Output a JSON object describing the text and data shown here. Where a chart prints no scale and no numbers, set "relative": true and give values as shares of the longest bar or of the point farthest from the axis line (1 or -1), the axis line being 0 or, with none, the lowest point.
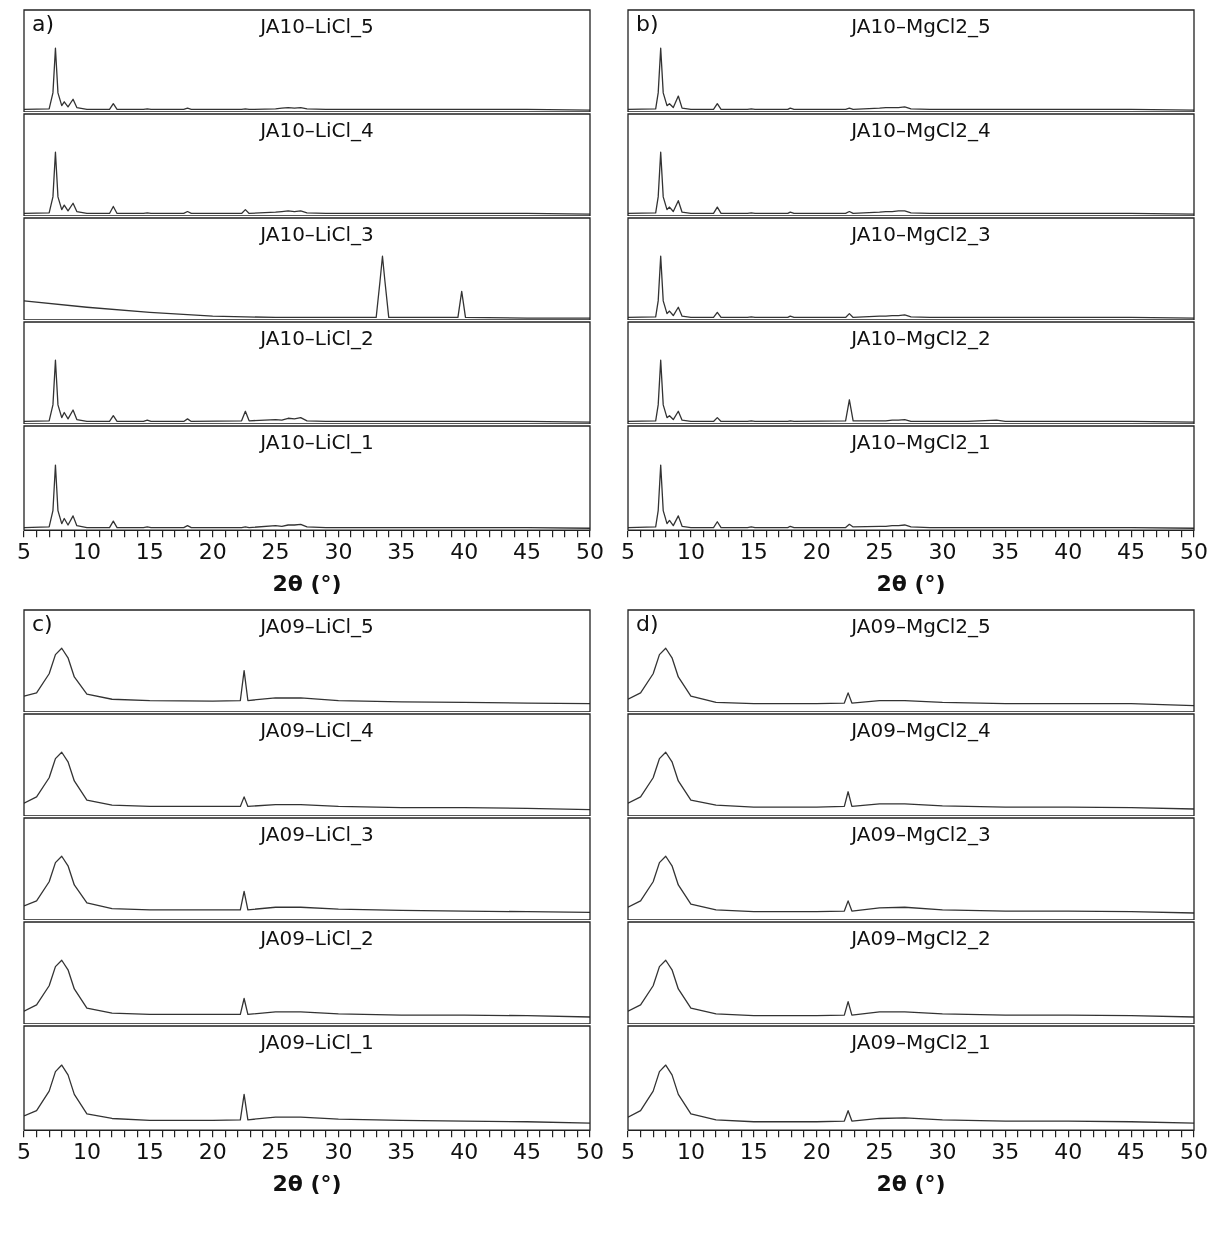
{
  "chart_data": [
    {
      "type": "line",
      "title": "JA10–LiCl_5",
      "annotations": [
        "a)"
      ],
      "relative": true,
      "color": "#333333",
      "xlim": [
        5,
        50
      ],
      "tick_labels": false,
      "grid": false,
      "legend": false,
      "x": [
        5,
        7,
        7.3,
        7.5,
        7.7,
        8,
        8.2,
        8.5,
        8.9,
        9.2,
        10,
        11.8,
        12.1,
        12.4,
        14.5,
        14.8,
        15.1,
        17.7,
        18,
        18.3,
        22.3,
        22.6,
        22.9,
        25,
        25.5,
        26,
        26.5,
        27,
        27.5,
        29,
        32,
        35,
        40,
        45,
        50
      ],
      "values": [
        0.04,
        0.05,
        0.3,
        1,
        0.3,
        0.1,
        0.16,
        0.08,
        0.2,
        0.07,
        0.04,
        0.04,
        0.13,
        0.04,
        0.04,
        0.05,
        0.04,
        0.04,
        0.06,
        0.04,
        0.04,
        0.05,
        0.04,
        0.05,
        0.06,
        0.07,
        0.06,
        0.07,
        0.05,
        0.04,
        0.04,
        0.04,
        0.04,
        0.04,
        0.03
      ]
    },
    {
      "type": "line",
      "title": "JA10–LiCl_4",
      "relative": true,
      "color": "#333333",
      "xlim": [
        5,
        50
      ],
      "tick_labels": false,
      "grid": false,
      "legend": false,
      "x": [
        5,
        7,
        7.3,
        7.5,
        7.7,
        8,
        8.2,
        8.5,
        8.9,
        9.2,
        10,
        11.8,
        12.1,
        12.4,
        14.5,
        14.8,
        15.1,
        17.7,
        18,
        18.3,
        22.3,
        22.6,
        22.9,
        25,
        25.5,
        26,
        26.5,
        27,
        27.5,
        29,
        32,
        35,
        40,
        45,
        50
      ],
      "values": [
        0.04,
        0.05,
        0.3,
        1,
        0.3,
        0.1,
        0.17,
        0.08,
        0.2,
        0.07,
        0.04,
        0.04,
        0.15,
        0.04,
        0.04,
        0.05,
        0.04,
        0.04,
        0.07,
        0.04,
        0.04,
        0.1,
        0.04,
        0.06,
        0.07,
        0.08,
        0.07,
        0.08,
        0.05,
        0.04,
        0.04,
        0.04,
        0.04,
        0.04,
        0.03
      ]
    },
    {
      "type": "line",
      "title": "JA10–LiCl_3",
      "relative": true,
      "color": "#333333",
      "xlim": [
        5,
        50
      ],
      "tick_labels": false,
      "grid": false,
      "legend": false,
      "x": [
        5,
        10,
        15,
        20,
        25,
        30,
        33,
        33.3,
        33.5,
        33.7,
        34,
        39.5,
        39.8,
        40.1,
        45,
        50
      ],
      "values": [
        0.3,
        0.2,
        0.12,
        0.06,
        0.04,
        0.04,
        0.04,
        0.6,
        1,
        0.6,
        0.04,
        0.04,
        0.45,
        0.04,
        0.03,
        0.03
      ]
    },
    {
      "type": "line",
      "title": "JA10–LiCl_2",
      "relative": true,
      "color": "#333333",
      "xlim": [
        5,
        50
      ],
      "tick_labels": false,
      "grid": false,
      "legend": false,
      "x": [
        5,
        7,
        7.3,
        7.5,
        7.7,
        8,
        8.2,
        8.5,
        8.9,
        9.2,
        10,
        11.8,
        12.1,
        12.4,
        14.5,
        14.8,
        15.1,
        17.7,
        18,
        18.3,
        22.3,
        22.6,
        22.9,
        25,
        25.5,
        26,
        26.5,
        27,
        27.5,
        29,
        32,
        35,
        40,
        45,
        50
      ],
      "values": [
        0.04,
        0.05,
        0.3,
        1,
        0.3,
        0.1,
        0.18,
        0.08,
        0.22,
        0.07,
        0.04,
        0.04,
        0.13,
        0.04,
        0.04,
        0.06,
        0.04,
        0.04,
        0.08,
        0.04,
        0.05,
        0.2,
        0.05,
        0.07,
        0.06,
        0.09,
        0.08,
        0.1,
        0.05,
        0.04,
        0.04,
        0.04,
        0.04,
        0.04,
        0.03
      ]
    },
    {
      "type": "line",
      "title": "JA10–LiCl_1",
      "relative": true,
      "color": "#333333",
      "xlim": [
        5,
        50
      ],
      "tick_labels": "x",
      "grid": false,
      "legend": false,
      "xlabel": "2θ (°)",
      "xticks": [
        5,
        {
          "value": 6,
          "label": null
        },
        {
          "value": 7,
          "label": null
        },
        {
          "value": 8,
          "label": null
        },
        {
          "value": 9,
          "label": null
        },
        10,
        {
          "value": 11,
          "label": null
        },
        {
          "value": 12,
          "label": null
        },
        {
          "value": 13,
          "label": null
        },
        {
          "value": 14,
          "label": null
        },
        15,
        {
          "value": 16,
          "label": null
        },
        {
          "value": 17,
          "label": null
        },
        {
          "value": 18,
          "label": null
        },
        {
          "value": 19,
          "label": null
        },
        20,
        {
          "value": 21,
          "label": null
        },
        {
          "value": 22,
          "label": null
        },
        {
          "value": 23,
          "label": null
        },
        {
          "value": 24,
          "label": null
        },
        25,
        {
          "value": 26,
          "label": null
        },
        {
          "value": 27,
          "label": null
        },
        {
          "value": 28,
          "label": null
        },
        {
          "value": 29,
          "label": null
        },
        30,
        {
          "value": 31,
          "label": null
        },
        {
          "value": 32,
          "label": null
        },
        {
          "value": 33,
          "label": null
        },
        {
          "value": 34,
          "label": null
        },
        35,
        {
          "value": 36,
          "label": null
        },
        {
          "value": 37,
          "label": null
        },
        {
          "value": 38,
          "label": null
        },
        {
          "value": 39,
          "label": null
        },
        40,
        {
          "value": 41,
          "label": null
        },
        {
          "value": 42,
          "label": null
        },
        {
          "value": 43,
          "label": null
        },
        {
          "value": 44,
          "label": null
        },
        45,
        {
          "value": 46,
          "label": null
        },
        {
          "value": 47,
          "label": null
        },
        {
          "value": 48,
          "label": null
        },
        {
          "value": 49,
          "label": null
        },
        50
      ],
      "x": [
        5,
        7,
        7.3,
        7.5,
        7.7,
        8,
        8.2,
        8.5,
        8.9,
        9.2,
        10,
        11.8,
        12.1,
        12.4,
        14.5,
        14.8,
        15.1,
        17.7,
        18,
        18.3,
        22.3,
        22.6,
        22.9,
        25,
        25.5,
        26,
        26.5,
        27,
        27.5,
        29,
        32,
        35,
        40,
        45,
        50
      ],
      "values": [
        0.04,
        0.05,
        0.3,
        1,
        0.3,
        0.1,
        0.18,
        0.08,
        0.22,
        0.07,
        0.04,
        0.04,
        0.14,
        0.04,
        0.04,
        0.05,
        0.04,
        0.04,
        0.07,
        0.04,
        0.04,
        0.05,
        0.04,
        0.07,
        0.06,
        0.08,
        0.08,
        0.09,
        0.05,
        0.04,
        0.04,
        0.04,
        0.04,
        0.04,
        0.03
      ]
    },
    {
      "type": "line",
      "title": "JA10–MgCl2_5",
      "annotations": [
        "b)"
      ],
      "relative": true,
      "color": "#333333",
      "xlim": [
        5,
        50
      ],
      "tick_labels": false,
      "grid": false,
      "legend": false,
      "x": [
        5,
        7.2,
        7.4,
        7.6,
        7.8,
        8.1,
        8.3,
        8.6,
        9,
        9.3,
        10,
        11.8,
        12.1,
        12.4,
        14.5,
        14.8,
        15.1,
        17.7,
        17.9,
        18.2,
        22.3,
        22.6,
        22.9,
        25,
        25.5,
        26,
        26.5,
        27,
        27.5,
        29,
        32,
        35,
        40,
        45,
        50
      ],
      "values": [
        0.04,
        0.05,
        0.3,
        1,
        0.3,
        0.1,
        0.13,
        0.07,
        0.25,
        0.06,
        0.04,
        0.04,
        0.13,
        0.04,
        0.04,
        0.05,
        0.04,
        0.04,
        0.06,
        0.04,
        0.04,
        0.06,
        0.04,
        0.06,
        0.07,
        0.07,
        0.07,
        0.08,
        0.05,
        0.04,
        0.04,
        0.04,
        0.04,
        0.04,
        0.03
      ]
    },
    {
      "type": "line",
      "title": "JA10–MgCl2_4",
      "relative": true,
      "color": "#333333",
      "xlim": [
        5,
        50
      ],
      "tick_labels": false,
      "grid": false,
      "legend": false,
      "x": [
        5,
        7.2,
        7.4,
        7.6,
        7.8,
        8.1,
        8.3,
        8.6,
        9,
        9.3,
        10,
        11.8,
        12.1,
        12.4,
        14.5,
        14.8,
        15.1,
        17.7,
        17.9,
        18.2,
        22.3,
        22.6,
        22.9,
        25,
        25.5,
        26,
        26.5,
        27,
        27.5,
        29,
        32,
        35,
        40,
        45,
        50
      ],
      "values": [
        0.04,
        0.05,
        0.3,
        1,
        0.3,
        0.1,
        0.14,
        0.07,
        0.24,
        0.06,
        0.04,
        0.04,
        0.14,
        0.04,
        0.04,
        0.05,
        0.04,
        0.04,
        0.06,
        0.04,
        0.04,
        0.07,
        0.04,
        0.06,
        0.07,
        0.07,
        0.08,
        0.08,
        0.05,
        0.04,
        0.04,
        0.04,
        0.04,
        0.04,
        0.03
      ]
    },
    {
      "type": "line",
      "title": "JA10–MgCl2_3",
      "relative": true,
      "color": "#333333",
      "xlim": [
        5,
        50
      ],
      "tick_labels": false,
      "grid": false,
      "legend": false,
      "x": [
        5,
        7.2,
        7.4,
        7.6,
        7.8,
        8.1,
        8.3,
        8.6,
        9,
        9.3,
        10,
        11.8,
        12.1,
        12.4,
        14.5,
        14.8,
        15.1,
        17.7,
        17.9,
        18.2,
        22.3,
        22.6,
        22.9,
        25,
        25.5,
        26,
        26.5,
        27,
        27.5,
        29,
        32,
        35,
        40,
        45,
        50
      ],
      "values": [
        0.04,
        0.05,
        0.3,
        1,
        0.3,
        0.1,
        0.14,
        0.07,
        0.2,
        0.06,
        0.04,
        0.04,
        0.12,
        0.04,
        0.04,
        0.05,
        0.04,
        0.04,
        0.06,
        0.04,
        0.04,
        0.1,
        0.04,
        0.06,
        0.06,
        0.07,
        0.07,
        0.08,
        0.05,
        0.04,
        0.04,
        0.04,
        0.04,
        0.04,
        0.03
      ]
    },
    {
      "type": "line",
      "title": "JA10–MgCl2_2",
      "relative": true,
      "color": "#333333",
      "xlim": [
        5,
        50
      ],
      "tick_labels": false,
      "grid": false,
      "legend": false,
      "x": [
        5,
        7.2,
        7.4,
        7.6,
        7.8,
        8.1,
        8.3,
        8.6,
        9,
        9.3,
        10,
        11.8,
        12.1,
        12.4,
        14.5,
        14.8,
        15.1,
        17.7,
        17.9,
        18.2,
        22.3,
        22.6,
        22.9,
        25,
        25.5,
        26,
        26.5,
        27,
        27.5,
        29,
        32,
        34.3,
        35,
        40,
        45,
        50
      ],
      "values": [
        0.04,
        0.05,
        0.3,
        1,
        0.3,
        0.1,
        0.13,
        0.07,
        0.2,
        0.06,
        0.04,
        0.04,
        0.1,
        0.04,
        0.04,
        0.05,
        0.04,
        0.04,
        0.05,
        0.04,
        0.05,
        0.38,
        0.05,
        0.05,
        0.05,
        0.06,
        0.06,
        0.07,
        0.04,
        0.04,
        0.04,
        0.06,
        0.04,
        0.04,
        0.04,
        0.03
      ]
    },
    {
      "type": "line",
      "title": "JA10–MgCl2_1",
      "relative": true,
      "color": "#333333",
      "xlim": [
        5,
        50
      ],
      "tick_labels": "x",
      "grid": false,
      "legend": false,
      "xlabel": "2θ (°)",
      "xticks": [
        5,
        {
          "value": 6,
          "label": null
        },
        {
          "value": 7,
          "label": null
        },
        {
          "value": 8,
          "label": null
        },
        {
          "value": 9,
          "label": null
        },
        10,
        {
          "value": 11,
          "label": null
        },
        {
          "value": 12,
          "label": null
        },
        {
          "value": 13,
          "label": null
        },
        {
          "value": 14,
          "label": null
        },
        15,
        {
          "value": 16,
          "label": null
        },
        {
          "value": 17,
          "label": null
        },
        {
          "value": 18,
          "label": null
        },
        {
          "value": 19,
          "label": null
        },
        20,
        {
          "value": 21,
          "label": null
        },
        {
          "value": 22,
          "label": null
        },
        {
          "value": 23,
          "label": null
        },
        {
          "value": 24,
          "label": null
        },
        25,
        {
          "value": 26,
          "label": null
        },
        {
          "value": 27,
          "label": null
        },
        {
          "value": 28,
          "label": null
        },
        {
          "value": 29,
          "label": null
        },
        30,
        {
          "value": 31,
          "label": null
        },
        {
          "value": 32,
          "label": null
        },
        {
          "value": 33,
          "label": null
        },
        {
          "value": 34,
          "label": null
        },
        35,
        {
          "value": 36,
          "label": null
        },
        {
          "value": 37,
          "label": null
        },
        {
          "value": 38,
          "label": null
        },
        {
          "value": 39,
          "label": null
        },
        40,
        {
          "value": 41,
          "label": null
        },
        {
          "value": 42,
          "label": null
        },
        {
          "value": 43,
          "label": null
        },
        {
          "value": 44,
          "label": null
        },
        45,
        {
          "value": 46,
          "label": null
        },
        {
          "value": 47,
          "label": null
        },
        {
          "value": 48,
          "label": null
        },
        {
          "value": 49,
          "label": null
        },
        50
      ],
      "x": [
        5,
        7.2,
        7.4,
        7.6,
        7.8,
        8.1,
        8.3,
        8.6,
        9,
        9.3,
        10,
        11.8,
        12.1,
        12.4,
        14.5,
        14.8,
        15.1,
        17.7,
        17.9,
        18.2,
        22.3,
        22.6,
        22.9,
        25,
        25.5,
        26,
        26.5,
        27,
        27.5,
        29,
        32,
        35,
        40,
        45,
        50
      ],
      "values": [
        0.04,
        0.05,
        0.3,
        1,
        0.3,
        0.1,
        0.15,
        0.07,
        0.22,
        0.06,
        0.04,
        0.04,
        0.13,
        0.04,
        0.04,
        0.05,
        0.04,
        0.04,
        0.06,
        0.04,
        0.04,
        0.09,
        0.05,
        0.06,
        0.06,
        0.07,
        0.07,
        0.08,
        0.05,
        0.04,
        0.04,
        0.04,
        0.04,
        0.04,
        0.03
      ]
    },
    {
      "type": "line",
      "title": "JA09–LiCl_5",
      "annotations": [
        "c)"
      ],
      "relative": true,
      "color": "#333333",
      "xlim": [
        5,
        50
      ],
      "tick_labels": false,
      "grid": false,
      "legend": false,
      "x": [
        5,
        6,
        7,
        7.5,
        8,
        8.5,
        9,
        10,
        12,
        15,
        20,
        22.2,
        22.5,
        22.8,
        25,
        27,
        30,
        35,
        40,
        45,
        50
      ],
      "values": [
        0.25,
        0.3,
        0.6,
        0.9,
        1,
        0.85,
        0.55,
        0.28,
        0.2,
        0.18,
        0.17,
        0.18,
        0.65,
        0.18,
        0.22,
        0.22,
        0.18,
        0.16,
        0.15,
        0.14,
        0.13
      ]
    },
    {
      "type": "line",
      "title": "JA09–LiCl_4",
      "relative": true,
      "color": "#333333",
      "xlim": [
        5,
        50
      ],
      "tick_labels": false,
      "grid": false,
      "legend": false,
      "x": [
        5,
        6,
        7,
        7.5,
        8,
        8.5,
        9,
        10,
        12,
        15,
        20,
        22.2,
        22.5,
        22.8,
        25,
        27,
        30,
        35,
        40,
        45,
        50
      ],
      "values": [
        0.2,
        0.3,
        0.6,
        0.9,
        1,
        0.85,
        0.55,
        0.25,
        0.17,
        0.15,
        0.15,
        0.15,
        0.3,
        0.15,
        0.18,
        0.18,
        0.15,
        0.13,
        0.13,
        0.12,
        0.1
      ]
    },
    {
      "type": "line",
      "title": "JA09–LiCl_3",
      "relative": true,
      "color": "#333333",
      "xlim": [
        5,
        50
      ],
      "tick_labels": false,
      "grid": false,
      "legend": false,
      "x": [
        5,
        6,
        7,
        7.5,
        8,
        8.5,
        9,
        10,
        12,
        15,
        20,
        22.2,
        22.5,
        22.8,
        25,
        27,
        30,
        35,
        40,
        45,
        50
      ],
      "values": [
        0.22,
        0.3,
        0.6,
        0.9,
        1,
        0.85,
        0.55,
        0.27,
        0.18,
        0.16,
        0.16,
        0.16,
        0.45,
        0.16,
        0.2,
        0.2,
        0.17,
        0.15,
        0.14,
        0.13,
        0.12
      ]
    },
    {
      "type": "line",
      "title": "JA09–LiCl_2",
      "relative": true,
      "color": "#333333",
      "xlim": [
        5,
        50
      ],
      "tick_labels": false,
      "grid": false,
      "legend": false,
      "x": [
        5,
        6,
        7,
        7.5,
        8,
        8.5,
        9,
        10,
        12,
        15,
        20,
        22.2,
        22.5,
        22.8,
        25,
        27,
        30,
        35,
        40,
        45,
        50
      ],
      "values": [
        0.2,
        0.3,
        0.6,
        0.9,
        1,
        0.85,
        0.55,
        0.25,
        0.17,
        0.15,
        0.15,
        0.15,
        0.4,
        0.15,
        0.19,
        0.19,
        0.16,
        0.14,
        0.14,
        0.13,
        0.11
      ]
    },
    {
      "type": "line",
      "title": "JA09–LiCl_1",
      "relative": true,
      "color": "#333333",
      "xlim": [
        5,
        50
      ],
      "tick_labels": "x",
      "grid": false,
      "legend": false,
      "xlabel": "2θ (°)",
      "xticks": [
        5,
        {
          "value": 6,
          "label": null
        },
        {
          "value": 7,
          "label": null
        },
        {
          "value": 8,
          "label": null
        },
        {
          "value": 9,
          "label": null
        },
        10,
        {
          "value": 11,
          "label": null
        },
        {
          "value": 12,
          "label": null
        },
        {
          "value": 13,
          "label": null
        },
        {
          "value": 14,
          "label": null
        },
        15,
        {
          "value": 16,
          "label": null
        },
        {
          "value": 17,
          "label": null
        },
        {
          "value": 18,
          "label": null
        },
        {
          "value": 19,
          "label": null
        },
        20,
        {
          "value": 21,
          "label": null
        },
        {
          "value": 22,
          "label": null
        },
        {
          "value": 23,
          "label": null
        },
        {
          "value": 24,
          "label": null
        },
        25,
        {
          "value": 26,
          "label": null
        },
        {
          "value": 27,
          "label": null
        },
        {
          "value": 28,
          "label": null
        },
        {
          "value": 29,
          "label": null
        },
        30,
        {
          "value": 31,
          "label": null
        },
        {
          "value": 32,
          "label": null
        },
        {
          "value": 33,
          "label": null
        },
        {
          "value": 34,
          "label": null
        },
        35,
        {
          "value": 36,
          "label": null
        },
        {
          "value": 37,
          "label": null
        },
        {
          "value": 38,
          "label": null
        },
        {
          "value": 39,
          "label": null
        },
        40,
        {
          "value": 41,
          "label": null
        },
        {
          "value": 42,
          "label": null
        },
        {
          "value": 43,
          "label": null
        },
        {
          "value": 44,
          "label": null
        },
        45,
        {
          "value": 46,
          "label": null
        },
        {
          "value": 47,
          "label": null
        },
        {
          "value": 48,
          "label": null
        },
        {
          "value": 49,
          "label": null
        },
        50
      ],
      "x": [
        5,
        6,
        7,
        7.5,
        8,
        8.5,
        9,
        10,
        12,
        15,
        20,
        22.2,
        22.5,
        22.8,
        25,
        27,
        30,
        35,
        40,
        45,
        50
      ],
      "values": [
        0.22,
        0.3,
        0.6,
        0.9,
        1,
        0.85,
        0.55,
        0.25,
        0.18,
        0.15,
        0.15,
        0.16,
        0.55,
        0.16,
        0.2,
        0.2,
        0.17,
        0.15,
        0.14,
        0.13,
        0.11
      ]
    },
    {
      "type": "line",
      "title": "JA09–MgCl2_5",
      "annotations": [
        "d)"
      ],
      "relative": true,
      "color": "#333333",
      "xlim": [
        5,
        50
      ],
      "tick_labels": false,
      "grid": false,
      "legend": false,
      "x": [
        5,
        6,
        7,
        7.5,
        8,
        8.5,
        9,
        10,
        12,
        15,
        20,
        22.2,
        22.5,
        22.8,
        25,
        27,
        30,
        35,
        40,
        45,
        50
      ],
      "values": [
        0.2,
        0.3,
        0.6,
        0.9,
        1,
        0.85,
        0.55,
        0.25,
        0.15,
        0.13,
        0.13,
        0.14,
        0.3,
        0.14,
        0.18,
        0.18,
        0.15,
        0.13,
        0.13,
        0.13,
        0.1
      ]
    },
    {
      "type": "line",
      "title": "JA09–MgCl2_4",
      "relative": true,
      "color": "#333333",
      "xlim": [
        5,
        50
      ],
      "tick_labels": false,
      "grid": false,
      "legend": false,
      "x": [
        5,
        6,
        7,
        7.5,
        8,
        8.5,
        9,
        10,
        12,
        15,
        20,
        22.2,
        22.5,
        22.8,
        25,
        27,
        30,
        35,
        40,
        45,
        50
      ],
      "values": [
        0.2,
        0.3,
        0.6,
        0.9,
        1,
        0.85,
        0.55,
        0.25,
        0.17,
        0.14,
        0.14,
        0.15,
        0.38,
        0.15,
        0.19,
        0.19,
        0.16,
        0.14,
        0.14,
        0.13,
        0.11
      ]
    },
    {
      "type": "line",
      "title": "JA09–MgCl2_3",
      "relative": true,
      "color": "#333333",
      "xlim": [
        5,
        50
      ],
      "tick_labels": false,
      "grid": false,
      "legend": false,
      "x": [
        5,
        6,
        7,
        7.5,
        8,
        8.5,
        9,
        10,
        12,
        15,
        20,
        22.2,
        22.5,
        22.8,
        25,
        27,
        30,
        35,
        40,
        45,
        50
      ],
      "values": [
        0.2,
        0.3,
        0.6,
        0.9,
        1,
        0.85,
        0.55,
        0.25,
        0.16,
        0.13,
        0.13,
        0.14,
        0.3,
        0.14,
        0.19,
        0.2,
        0.16,
        0.14,
        0.14,
        0.13,
        0.11
      ]
    },
    {
      "type": "line",
      "title": "JA09–MgCl2_2",
      "relative": true,
      "color": "#333333",
      "xlim": [
        5,
        50
      ],
      "tick_labels": false,
      "grid": false,
      "legend": false,
      "x": [
        5,
        6,
        7,
        7.5,
        8,
        8.5,
        9,
        10,
        12,
        15,
        20,
        22.2,
        22.5,
        22.8,
        25,
        27,
        30,
        35,
        40,
        45,
        50
      ],
      "values": [
        0.2,
        0.3,
        0.6,
        0.9,
        1,
        0.85,
        0.55,
        0.25,
        0.16,
        0.13,
        0.13,
        0.14,
        0.35,
        0.14,
        0.19,
        0.19,
        0.16,
        0.14,
        0.14,
        0.13,
        0.11
      ]
    },
    {
      "type": "line",
      "title": "JA09–MgCl2_1",
      "relative": true,
      "color": "#333333",
      "xlim": [
        5,
        50
      ],
      "tick_labels": "x",
      "grid": false,
      "legend": false,
      "xlabel": "2θ (°)",
      "xticks": [
        5,
        {
          "value": 6,
          "label": null
        },
        {
          "value": 7,
          "label": null
        },
        {
          "value": 8,
          "label": null
        },
        {
          "value": 9,
          "label": null
        },
        10,
        {
          "value": 11,
          "label": null
        },
        {
          "value": 12,
          "label": null
        },
        {
          "value": 13,
          "label": null
        },
        {
          "value": 14,
          "label": null
        },
        15,
        {
          "value": 16,
          "label": null
        },
        {
          "value": 17,
          "label": null
        },
        {
          "value": 18,
          "label": null
        },
        {
          "value": 19,
          "label": null
        },
        20,
        {
          "value": 21,
          "label": null
        },
        {
          "value": 22,
          "label": null
        },
        {
          "value": 23,
          "label": null
        },
        {
          "value": 24,
          "label": null
        },
        25,
        {
          "value": 26,
          "label": null
        },
        {
          "value": 27,
          "label": null
        },
        {
          "value": 28,
          "label": null
        },
        {
          "value": 29,
          "label": null
        },
        30,
        {
          "value": 31,
          "label": null
        },
        {
          "value": 32,
          "label": null
        },
        {
          "value": 33,
          "label": null
        },
        {
          "value": 34,
          "label": null
        },
        35,
        {
          "value": 36,
          "label": null
        },
        {
          "value": 37,
          "label": null
        },
        {
          "value": 38,
          "label": null
        },
        {
          "value": 39,
          "label": null
        },
        40,
        {
          "value": 41,
          "label": null
        },
        {
          "value": 42,
          "label": null
        },
        {
          "value": 43,
          "label": null
        },
        {
          "value": 44,
          "label": null
        },
        45,
        {
          "value": 46,
          "label": null
        },
        {
          "value": 47,
          "label": null
        },
        {
          "value": 48,
          "label": null
        },
        {
          "value": 49,
          "label": null
        },
        50
      ],
      "x": [
        5,
        6,
        7,
        7.5,
        8,
        8.5,
        9,
        10,
        12,
        15,
        20,
        22.2,
        22.5,
        22.8,
        25,
        27,
        30,
        35,
        40,
        45,
        50
      ],
      "values": [
        0.2,
        0.3,
        0.6,
        0.9,
        1,
        0.85,
        0.55,
        0.25,
        0.16,
        0.13,
        0.13,
        0.14,
        0.3,
        0.14,
        0.18,
        0.19,
        0.16,
        0.14,
        0.14,
        0.13,
        0.11
      ]
    }
  ]
}
